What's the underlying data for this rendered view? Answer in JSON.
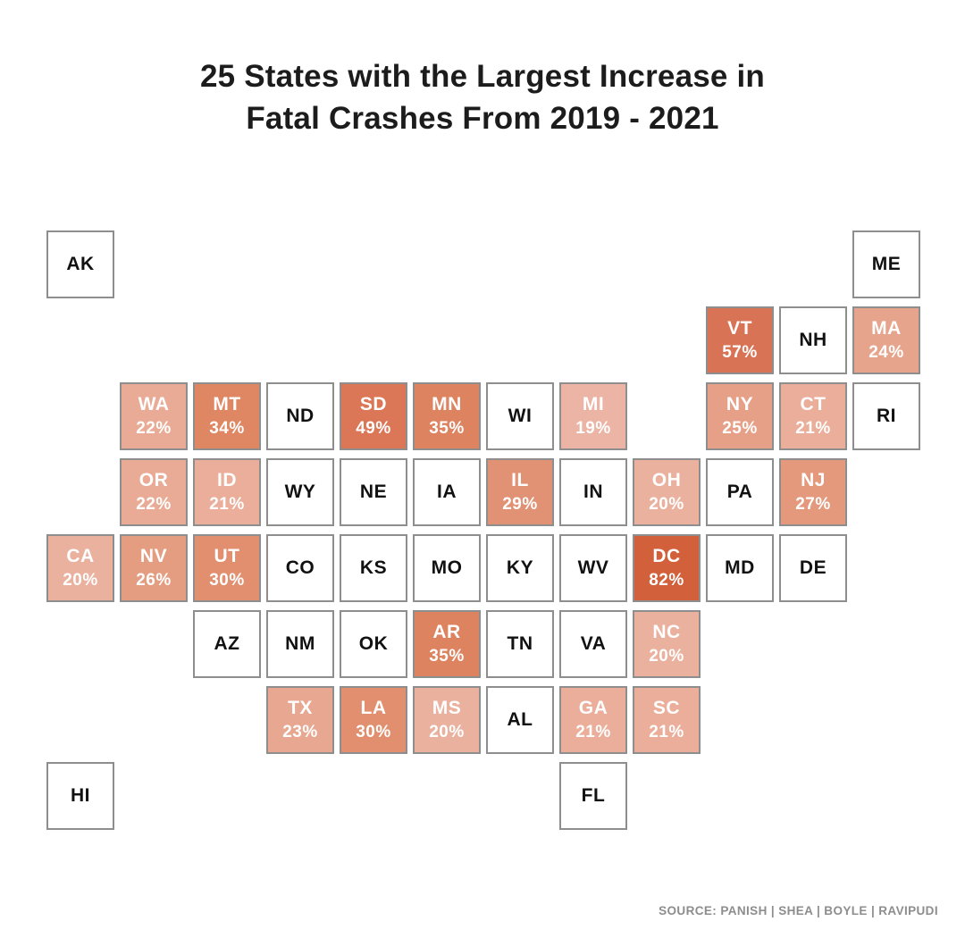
{
  "title": {
    "line1": "25 States with the Largest Increase in",
    "line2": "Fatal Crashes From 2019 - 2021"
  },
  "source": "SOURCE: PANISH | SHEA | BOYLE | RAVIPUDI",
  "style": {
    "tile_border": "#8e8e8e",
    "text_dark": "#111111",
    "text_light": "#ffffff",
    "source_color": "#8d8d8d"
  },
  "chart_data": {
    "type": "heatmap",
    "subtype": "us-state-tile-grid-cartogram",
    "title": "25 States with the Largest Increase in Fatal Crashes From 2019 - 2021",
    "value_label": "% increase in fatal crashes 2019-2021",
    "value_range": [
      19,
      82
    ],
    "color_scale": {
      "min_value_color": "#ecb4a4",
      "max_value_color": "#d2613b",
      "empty_color": "#ffffff"
    },
    "legend": "none",
    "tiles": [
      {
        "abbr": "AK",
        "row": 0,
        "col": 0,
        "value": null,
        "color": null
      },
      {
        "abbr": "ME",
        "row": 0,
        "col": 11,
        "value": null,
        "color": null
      },
      {
        "abbr": "VT",
        "row": 1,
        "col": 9,
        "value": 57,
        "color": "#d87356"
      },
      {
        "abbr": "NH",
        "row": 1,
        "col": 10,
        "value": null,
        "color": null
      },
      {
        "abbr": "MA",
        "row": 1,
        "col": 11,
        "value": 24,
        "color": "#e7a48c"
      },
      {
        "abbr": "WA",
        "row": 2,
        "col": 1,
        "value": 22,
        "color": "#e9ab95"
      },
      {
        "abbr": "MT",
        "row": 2,
        "col": 2,
        "value": 34,
        "color": "#df8663"
      },
      {
        "abbr": "ND",
        "row": 2,
        "col": 3,
        "value": null,
        "color": null
      },
      {
        "abbr": "SD",
        "row": 2,
        "col": 4,
        "value": 49,
        "color": "#db7757"
      },
      {
        "abbr": "MN",
        "row": 2,
        "col": 5,
        "value": 35,
        "color": "#de8360"
      },
      {
        "abbr": "WI",
        "row": 2,
        "col": 6,
        "value": null,
        "color": null
      },
      {
        "abbr": "MI",
        "row": 2,
        "col": 7,
        "value": 19,
        "color": "#ecb4a4"
      },
      {
        "abbr": "NY",
        "row": 2,
        "col": 9,
        "value": 25,
        "color": "#e6a087"
      },
      {
        "abbr": "CT",
        "row": 2,
        "col": 10,
        "value": 21,
        "color": "#eaae9a"
      },
      {
        "abbr": "RI",
        "row": 2,
        "col": 11,
        "value": null,
        "color": null
      },
      {
        "abbr": "OR",
        "row": 3,
        "col": 1,
        "value": 22,
        "color": "#e9ab95"
      },
      {
        "abbr": "ID",
        "row": 3,
        "col": 2,
        "value": 21,
        "color": "#eaae9a"
      },
      {
        "abbr": "WY",
        "row": 3,
        "col": 3,
        "value": null,
        "color": null
      },
      {
        "abbr": "NE",
        "row": 3,
        "col": 4,
        "value": null,
        "color": null
      },
      {
        "abbr": "IA",
        "row": 3,
        "col": 5,
        "value": null,
        "color": null
      },
      {
        "abbr": "IL",
        "row": 3,
        "col": 6,
        "value": 29,
        "color": "#e29274"
      },
      {
        "abbr": "IN",
        "row": 3,
        "col": 7,
        "value": null,
        "color": null
      },
      {
        "abbr": "OH",
        "row": 3,
        "col": 8,
        "value": 20,
        "color": "#ebb19f"
      },
      {
        "abbr": "PA",
        "row": 3,
        "col": 9,
        "value": null,
        "color": null
      },
      {
        "abbr": "NJ",
        "row": 3,
        "col": 10,
        "value": 27,
        "color": "#e4997d"
      },
      {
        "abbr": "CA",
        "row": 4,
        "col": 0,
        "value": 20,
        "color": "#ebb19f"
      },
      {
        "abbr": "NV",
        "row": 4,
        "col": 1,
        "value": 26,
        "color": "#e59d82"
      },
      {
        "abbr": "UT",
        "row": 4,
        "col": 2,
        "value": 30,
        "color": "#e18f6f"
      },
      {
        "abbr": "CO",
        "row": 4,
        "col": 3,
        "value": null,
        "color": null
      },
      {
        "abbr": "KS",
        "row": 4,
        "col": 4,
        "value": null,
        "color": null
      },
      {
        "abbr": "MO",
        "row": 4,
        "col": 5,
        "value": null,
        "color": null
      },
      {
        "abbr": "KY",
        "row": 4,
        "col": 6,
        "value": null,
        "color": null
      },
      {
        "abbr": "WV",
        "row": 4,
        "col": 7,
        "value": null,
        "color": null
      },
      {
        "abbr": "DC",
        "row": 4,
        "col": 8,
        "value": 82,
        "color": "#d2613b"
      },
      {
        "abbr": "MD",
        "row": 4,
        "col": 9,
        "value": null,
        "color": null
      },
      {
        "abbr": "DE",
        "row": 4,
        "col": 10,
        "value": null,
        "color": null
      },
      {
        "abbr": "AZ",
        "row": 5,
        "col": 2,
        "value": null,
        "color": null
      },
      {
        "abbr": "NM",
        "row": 5,
        "col": 3,
        "value": null,
        "color": null
      },
      {
        "abbr": "OK",
        "row": 5,
        "col": 4,
        "value": null,
        "color": null
      },
      {
        "abbr": "AR",
        "row": 5,
        "col": 5,
        "value": 35,
        "color": "#de8360"
      },
      {
        "abbr": "TN",
        "row": 5,
        "col": 6,
        "value": null,
        "color": null
      },
      {
        "abbr": "VA",
        "row": 5,
        "col": 7,
        "value": null,
        "color": null
      },
      {
        "abbr": "NC",
        "row": 5,
        "col": 8,
        "value": 20,
        "color": "#ebb19f"
      },
      {
        "abbr": "TX",
        "row": 6,
        "col": 3,
        "value": 23,
        "color": "#e8a790"
      },
      {
        "abbr": "LA",
        "row": 6,
        "col": 4,
        "value": 30,
        "color": "#e18f6f"
      },
      {
        "abbr": "MS",
        "row": 6,
        "col": 5,
        "value": 20,
        "color": "#ebb19f"
      },
      {
        "abbr": "AL",
        "row": 6,
        "col": 6,
        "value": null,
        "color": null
      },
      {
        "abbr": "GA",
        "row": 6,
        "col": 7,
        "value": 21,
        "color": "#eaae9a"
      },
      {
        "abbr": "SC",
        "row": 6,
        "col": 8,
        "value": 21,
        "color": "#eaae9a"
      },
      {
        "abbr": "HI",
        "row": 7,
        "col": 0,
        "value": null,
        "color": null
      },
      {
        "abbr": "FL",
        "row": 7,
        "col": 7,
        "value": null,
        "color": null
      }
    ]
  }
}
